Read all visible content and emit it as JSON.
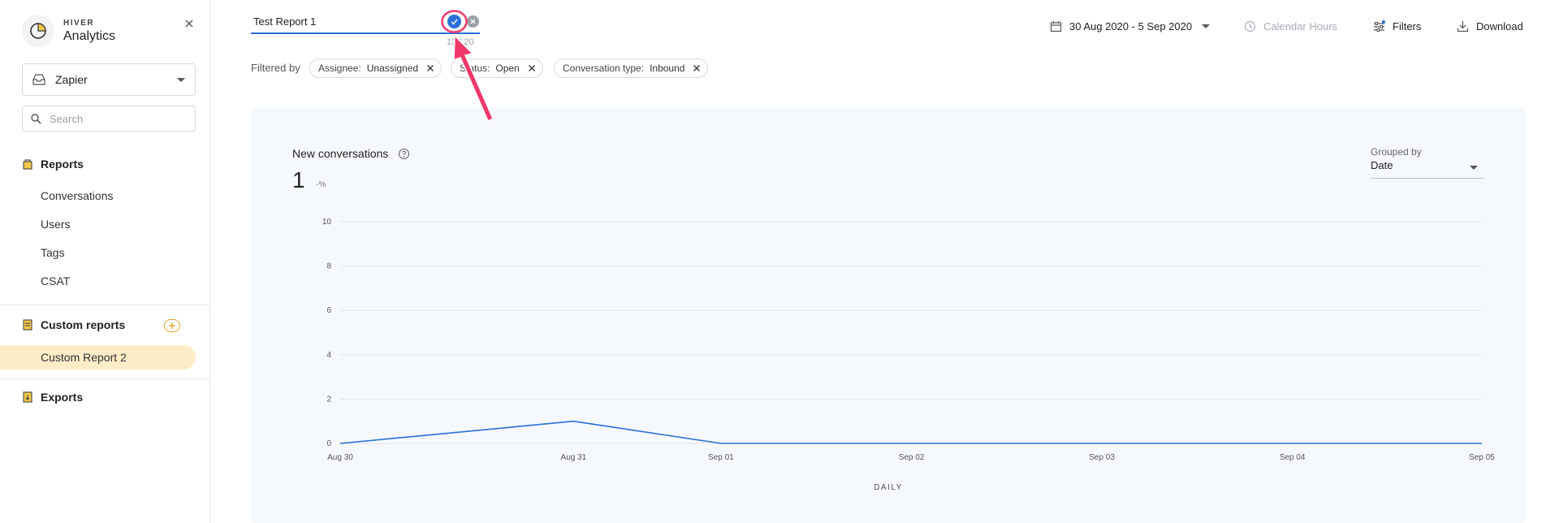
{
  "brand": {
    "small": "HIVER",
    "name": "Analytics"
  },
  "inbox": {
    "selected": "Zapier"
  },
  "search": {
    "placeholder": "Search"
  },
  "sidebar": {
    "reports_heading": "Reports",
    "reports_items": [
      "Conversations",
      "Users",
      "Tags",
      "CSAT"
    ],
    "custom_heading": "Custom reports",
    "custom_items": [
      "Custom Report 2"
    ],
    "exports_heading": "Exports"
  },
  "editor": {
    "title_value": "Test Report 1",
    "char_count": "13 / 20"
  },
  "top_actions": {
    "date_range": "30 Aug 2020 - 5 Sep 2020",
    "calendar_hours": "Calendar Hours",
    "filters": "Filters",
    "download": "Download"
  },
  "filters": {
    "label": "Filtered by",
    "chips": [
      {
        "key": "Assignee:",
        "value": "Unassigned"
      },
      {
        "key": "Status:",
        "value": "Open"
      },
      {
        "key": "Conversation type:",
        "value": "Inbound"
      }
    ]
  },
  "card": {
    "title": "New conversations",
    "total": "1",
    "change": "-%",
    "grouped_label": "Grouped by",
    "grouped_value": "Date",
    "x_caption": "DAILY"
  },
  "colors": {
    "accent": "#2b6fd6",
    "highlight": "#fdecc8",
    "annotation": "#f0386b"
  },
  "chart_data": {
    "type": "line",
    "title": "New conversations",
    "xlabel": "DAILY",
    "ylabel": "",
    "categories": [
      "Aug 30",
      "Aug 31",
      "Sep 01",
      "Sep 02",
      "Sep 03",
      "Sep 04",
      "Sep 05"
    ],
    "series": [
      {
        "values": [
          0,
          1,
          0,
          0,
          0,
          0,
          0
        ]
      }
    ],
    "yticks": [
      0,
      2,
      4,
      6,
      8,
      10
    ],
    "ylim": [
      0,
      10
    ],
    "grid": true
  }
}
